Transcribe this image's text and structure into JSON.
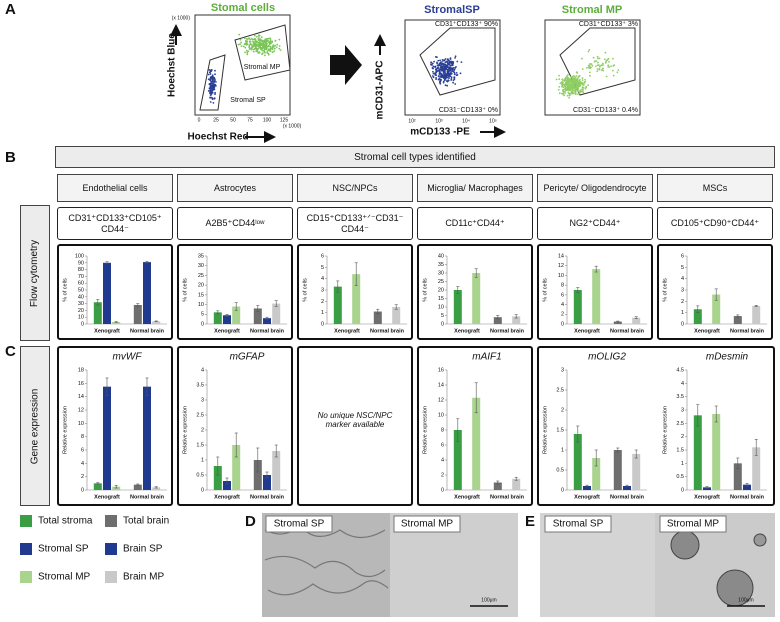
{
  "panel_labels": [
    "A",
    "B",
    "C",
    "D",
    "E"
  ],
  "panel_a": {
    "plots": [
      {
        "title": "Stomal cells",
        "x_label": "Hoechst Red",
        "y_label": "Hoechst Blue",
        "scale_note": "(x 1000)",
        "x_tick_labels": [
          "0",
          "25",
          "50",
          "75",
          "100",
          "125"
        ],
        "gates": [
          "Stromal MP",
          "Stromal SP"
        ]
      },
      {
        "title": "StromalSP",
        "x_label": "mCD133 -PE",
        "y_label": "mCD31-APC",
        "x_tick_labels": [
          "10²",
          "10³",
          "10⁴",
          "10⁵"
        ],
        "gates": [
          "CD31⁺CD133⁺ 90%",
          "CD31⁻CD133⁺ 0%"
        ]
      },
      {
        "title": "Stromal MP",
        "gates": [
          "CD31⁺CD133⁺ 3%",
          "CD31⁻CD133⁺ 0.4%"
        ]
      }
    ]
  },
  "panel_b": {
    "header": "Stromal cell types identified",
    "row_labels": [
      "Flow cytometry",
      "Gene expression"
    ],
    "cell_types": [
      "Endothelial cells",
      "Astrocytes",
      "NSC/NPCs",
      "Microglia/ Macrophages",
      "Pericyte/ Oligodendrocyte",
      "MSCs"
    ],
    "markers": [
      "CD31⁺CD133⁺CD105⁺ CD44⁻",
      "A2B5⁺CD44ˡᵒʷ",
      "CD15⁺CD133⁺ᐟ⁻CD31⁻ CD44⁻",
      "CD11c⁺CD44⁺",
      "NG2⁺CD44⁺",
      "CD105⁺CD90⁺CD44⁺"
    ]
  },
  "panel_c": {
    "note": "No unique NSC/NPC marker available"
  },
  "legend": {
    "series": [
      {
        "name": "Total stroma",
        "color": "#3a9e45"
      },
      {
        "name": "Stromal SP",
        "color": "#1f3a8f"
      },
      {
        "name": "Stromal MP",
        "color": "#a9d48e"
      },
      {
        "name": "Total brain",
        "color": "#6e6e6e"
      },
      {
        "name": "Brain SP",
        "color": "#1f3a8f"
      },
      {
        "name": "Brain MP",
        "color": "#c9c9c9"
      }
    ]
  },
  "images": {
    "D": {
      "labels": [
        "Stromal SP",
        "Stromal MP"
      ],
      "scale_bar": "100μm"
    },
    "E": {
      "labels": [
        "Stromal SP",
        "Stromal MP"
      ],
      "scale_bar": "100μm"
    }
  },
  "chart_data": [
    {
      "type": "bar",
      "y_label": "% of cells",
      "categories": [
        "Xenograft",
        "Normal brain"
      ],
      "values": [
        [
          32,
          90,
          3
        ],
        [
          28,
          91,
          4
        ]
      ],
      "errors": [
        [
          4,
          1.5,
          0.5
        ],
        [
          2,
          1,
          0.5
        ]
      ],
      "ylim": [
        0,
        100
      ],
      "yticks": [
        0,
        10,
        20,
        30,
        40,
        50,
        60,
        70,
        80,
        90,
        100
      ]
    },
    {
      "type": "bar",
      "y_label": "% of cells",
      "categories": [
        "Xenograft",
        "Normal brain"
      ],
      "values": [
        [
          6,
          4.5,
          9
        ],
        [
          8,
          3,
          10.5
        ]
      ],
      "errors": [
        [
          0.8,
          0.5,
          2
        ],
        [
          1.5,
          0.5,
          1.5
        ]
      ],
      "ylim": [
        0,
        35
      ],
      "yticks": [
        0,
        5,
        10,
        15,
        20,
        25,
        30,
        35
      ]
    },
    {
      "type": "bar",
      "y_label": "% of cells",
      "categories": [
        "Xenograft",
        "Normal brain"
      ],
      "values": [
        [
          3.3,
          null,
          4.4
        ],
        [
          1.1,
          null,
          1.5
        ]
      ],
      "errors": [
        [
          0.5,
          null,
          1
        ],
        [
          0.2,
          null,
          0.2
        ]
      ],
      "ylim": [
        0,
        6
      ],
      "yticks": [
        0,
        1,
        2,
        3,
        4,
        5,
        6
      ]
    },
    {
      "type": "bar",
      "y_label": "% of cells",
      "categories": [
        "Xenograft",
        "Normal brain"
      ],
      "values": [
        [
          20,
          null,
          30
        ],
        [
          4,
          null,
          4.5
        ]
      ],
      "errors": [
        [
          2,
          null,
          2.5
        ],
        [
          1,
          null,
          1
        ]
      ],
      "ylim": [
        0,
        40
      ],
      "yticks": [
        0,
        5,
        10,
        15,
        20,
        25,
        30,
        35,
        40
      ]
    },
    {
      "type": "bar",
      "y_label": "% of cells",
      "categories": [
        "Xenograft",
        "Normal brain"
      ],
      "values": [
        [
          7,
          null,
          11.3
        ],
        [
          0.5,
          null,
          1.3
        ]
      ],
      "errors": [
        [
          0.5,
          null,
          0.6
        ],
        [
          0.1,
          null,
          0.2
        ]
      ],
      "ylim": [
        0,
        14
      ],
      "yticks": [
        0,
        2,
        4,
        6,
        8,
        10,
        12,
        14
      ]
    },
    {
      "type": "bar",
      "y_label": "% of cells",
      "categories": [
        "Xenograft",
        "Normal brain"
      ],
      "values": [
        [
          1.3,
          null,
          2.6
        ],
        [
          0.7,
          null,
          1.6
        ]
      ],
      "errors": [
        [
          0.3,
          null,
          0.5
        ],
        [
          0.1,
          null,
          0.05
        ]
      ],
      "ylim": [
        0,
        6
      ],
      "yticks": [
        0,
        1,
        2,
        3,
        4,
        5,
        6
      ]
    },
    {
      "type": "bar",
      "title": "mvWF",
      "y_label": "Relative expression",
      "categories": [
        "Xenograft",
        "Normal brain"
      ],
      "values": [
        [
          1,
          15.5,
          0.5
        ],
        [
          0.8,
          15.5,
          0.4
        ]
      ],
      "errors": [
        [
          0.1,
          1.3,
          0.2
        ],
        [
          0.1,
          1.3,
          0.1
        ]
      ],
      "ylim": [
        0,
        18
      ],
      "yticks": [
        0,
        2,
        4,
        6,
        8,
        10,
        12,
        14,
        16,
        18
      ]
    },
    {
      "type": "bar",
      "title": "mGFAP",
      "y_label": "Relative expression",
      "categories": [
        "Xenograft",
        "Normal brain"
      ],
      "values": [
        [
          0.8,
          0.3,
          1.5
        ],
        [
          1,
          0.5,
          1.3
        ]
      ],
      "errors": [
        [
          0.3,
          0.1,
          0.4
        ],
        [
          0.4,
          0.1,
          0.2
        ]
      ],
      "ylim": [
        0,
        4
      ],
      "yticks": [
        0,
        0.5,
        1,
        1.5,
        2,
        2.5,
        3,
        3.5,
        4
      ]
    },
    {
      "type": "bar",
      "title": "mAIF1",
      "y_label": "Relative expression",
      "categories": [
        "Xenograft",
        "Normal brain"
      ],
      "values": [
        [
          8,
          null,
          12.3
        ],
        [
          1,
          null,
          1.5
        ]
      ],
      "errors": [
        [
          1.5,
          null,
          2
        ],
        [
          0.2,
          null,
          0.2
        ]
      ],
      "ylim": [
        0,
        16
      ],
      "yticks": [
        0,
        2,
        4,
        6,
        8,
        10,
        12,
        14,
        16
      ]
    },
    {
      "type": "bar",
      "title": "mOLIG2",
      "y_label": "Relative expression",
      "categories": [
        "Xenograft",
        "Normal brain"
      ],
      "values": [
        [
          1.4,
          0.1,
          0.8
        ],
        [
          1,
          0.1,
          0.9
        ]
      ],
      "errors": [
        [
          0.2,
          0.02,
          0.2
        ],
        [
          0.05,
          0.02,
          0.1
        ]
      ],
      "ylim": [
        0,
        3
      ],
      "yticks": [
        0,
        0.5,
        1,
        1.5,
        2,
        2.5,
        3
      ]
    },
    {
      "type": "bar",
      "title": "mDesmin",
      "y_label": "Relative expression",
      "categories": [
        "Xenograft",
        "Normal brain"
      ],
      "values": [
        [
          2.8,
          0.1,
          2.85
        ],
        [
          1,
          0.2,
          1.6
        ]
      ],
      "errors": [
        [
          0.4,
          0.03,
          0.3
        ],
        [
          0.2,
          0.05,
          0.3
        ]
      ],
      "ylim": [
        0,
        4.5
      ],
      "yticks": [
        0,
        0.5,
        1,
        1.5,
        2,
        2.5,
        3,
        3.5,
        4,
        4.5
      ]
    }
  ]
}
